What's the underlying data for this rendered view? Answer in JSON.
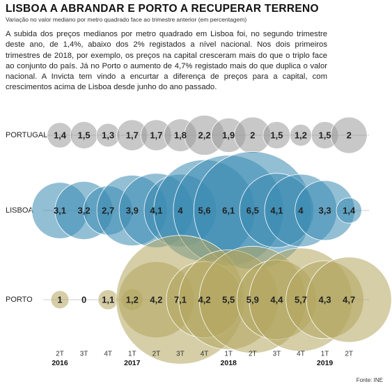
{
  "chart_data": {
    "type": "bubble",
    "title": "LISBOA A ABRANDAR E PORTO A RECUPERAR TERRENO",
    "subtitle": "Variação no valor mediano por metro quadrado face ao trimestre anterior (em percentagem)",
    "text": "A subida dos preços medianos por metro quadrado em Lisboa foi, no segundo trimestre deste ano, de 1,4%, abaixo dos 2% registados a nível nacional. Nos dois primeiros trimestres de 2018, por exemplo, os preços na capital cresceram mais do que o triplo face ao conjunto do país. Já no Porto o aumento de 4,7% registado mais do que duplica o valor nacional. A Invicta tem vindo a encurtar a diferença de preços para a capital, com crescimentos acima de Lisboa desde junho do ano passado.",
    "categories": [
      "2T",
      "3T",
      "4T",
      "1T",
      "2T",
      "3T",
      "4T",
      "1T",
      "2T",
      "3T",
      "4T",
      "1T",
      "2T"
    ],
    "years": [
      "2016",
      null,
      null,
      "2017",
      null,
      null,
      null,
      "2018",
      null,
      null,
      null,
      "2019",
      null
    ],
    "series": [
      {
        "name": "PORTUGAL",
        "color": "#9a9a9a",
        "values": [
          1.4,
          1.5,
          1.3,
          1.7,
          1.7,
          1.8,
          2.2,
          1.9,
          2,
          1.5,
          1.2,
          1.5,
          2
        ],
        "value_labels": [
          "1,4",
          "1,5",
          "1,3",
          "1,7",
          "1,7",
          "1,8",
          "2,2",
          "1,9",
          "2",
          "1,5",
          "1,2",
          "1,5",
          "2"
        ]
      },
      {
        "name": "LISBOA",
        "color": "#3a8ab3",
        "values": [
          3.1,
          3.2,
          2.7,
          3.9,
          4.1,
          4,
          5.6,
          6.1,
          6.5,
          4.1,
          4,
          3.3,
          1.4
        ],
        "value_labels": [
          "3,1",
          "3,2",
          "2,7",
          "3,9",
          "4,1",
          "4",
          "5,6",
          "6,1",
          "6,5",
          "4,1",
          "4",
          "3,3",
          "1,4"
        ]
      },
      {
        "name": "PORTO",
        "color": "#b3a55e",
        "values": [
          1,
          0,
          1.1,
          1.2,
          4.2,
          7.1,
          4.2,
          5.5,
          5.9,
          4.4,
          5.7,
          4.3,
          4.7
        ],
        "value_labels": [
          "1",
          "0",
          "1,1",
          "1,2",
          "4,2",
          "7,1",
          "4,2",
          "5,5",
          "5,9",
          "4,4",
          "5,7",
          "4,3",
          "4,7"
        ]
      }
    ],
    "source": "Fonte: INE"
  }
}
